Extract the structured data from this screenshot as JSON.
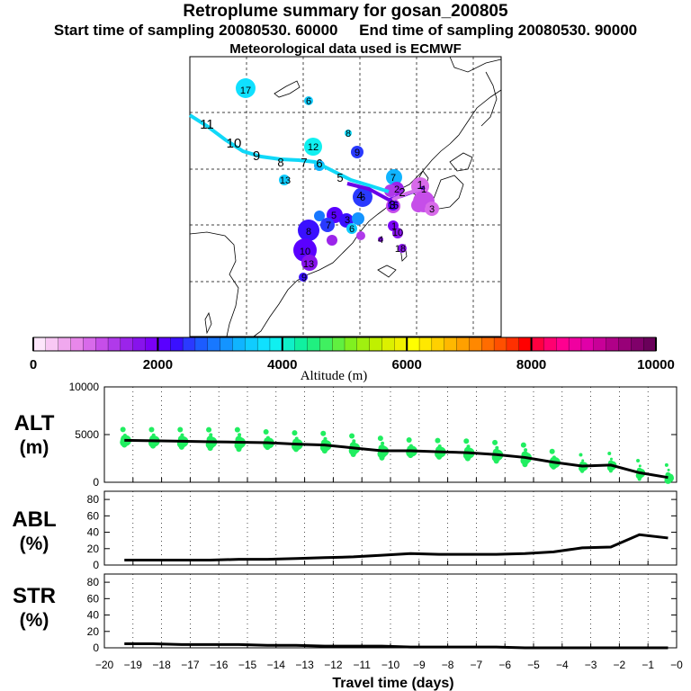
{
  "header": {
    "title": "Retroplume summary for gosan_200805",
    "start_label": "Start time of sampling 20080530. 60000",
    "end_label": "End time of sampling 20080530. 90000",
    "met_label": "Meteorological data used is ECMWF"
  },
  "map": {
    "track_labels": [
      "11",
      "10",
      "9",
      "8",
      "7",
      "6",
      "5",
      "4",
      "3",
      "2",
      "1"
    ],
    "cluster_labels": [
      "17",
      "6",
      "8",
      "12",
      "9",
      "13",
      "7",
      "6",
      "5",
      "3",
      "2",
      "1",
      "8",
      "7",
      "6",
      "1",
      "10",
      "13",
      "15",
      "10",
      "9",
      "18",
      "4",
      "3"
    ]
  },
  "colorbar": {
    "label": "Altitude (m)",
    "ticks": [
      "0",
      "2000",
      "4000",
      "6000",
      "8000",
      "10000"
    ],
    "colors": [
      "#fde6fb",
      "#f8c8f4",
      "#f0a8ee",
      "#e887ea",
      "#d86aea",
      "#c64ee9",
      "#b03aea",
      "#9b24ea",
      "#8713ec",
      "#7a00f6",
      "#5a00ff",
      "#3a10ff",
      "#2a3aff",
      "#1c5cff",
      "#1878ff",
      "#1494ff",
      "#10b4ff",
      "#10ccff",
      "#10e0ff",
      "#10f0f0",
      "#10f0c8",
      "#10f0a0",
      "#20f080",
      "#40f060",
      "#60f040",
      "#80f020",
      "#a0f010",
      "#c0f000",
      "#dcf000",
      "#f0f000",
      "#ffff00",
      "#ffe800",
      "#ffd000",
      "#ffb800",
      "#ffa000",
      "#ff8800",
      "#ff6c00",
      "#ff5000",
      "#ff3000",
      "#ff0000",
      "#ff0040",
      "#ff0070",
      "#ff0090",
      "#f000a0",
      "#e000a8",
      "#c80098",
      "#b00088",
      "#980078",
      "#80006a",
      "#6a005a"
    ]
  },
  "chart_data": [
    {
      "panel": "ALT",
      "type": "line",
      "ylabel": "ALT\n(m)",
      "ylabel_lines": [
        "ALT",
        "(m)"
      ],
      "x": [
        -19.3,
        -18.3,
        -17.3,
        -16.3,
        -15.3,
        -14.3,
        -13.3,
        -12.3,
        -11.3,
        -10.3,
        -9.3,
        -8.3,
        -7.3,
        -6.3,
        -5.3,
        -4.3,
        -3.3,
        -2.3,
        -1.3,
        -0.3
      ],
      "values": [
        4400,
        4350,
        4300,
        4250,
        4200,
        4150,
        4000,
        3900,
        3600,
        3300,
        3300,
        3200,
        3100,
        2900,
        2600,
        2100,
        1700,
        1800,
        1000,
        500
      ],
      "ylim": [
        0,
        10000
      ],
      "yticks": [
        "0",
        "5000",
        "10000"
      ],
      "scatter_color": "#20ee60"
    },
    {
      "panel": "ABL",
      "type": "line",
      "ylabel_lines": [
        "ABL",
        "(%)"
      ],
      "x": [
        -19.3,
        -18.3,
        -17.3,
        -16.3,
        -15.3,
        -14.3,
        -13.3,
        -12.3,
        -11.3,
        -10.3,
        -9.3,
        -8.3,
        -7.3,
        -6.3,
        -5.3,
        -4.3,
        -3.3,
        -2.3,
        -1.3,
        -0.3
      ],
      "values": [
        6,
        6,
        6,
        6,
        7,
        7,
        8,
        9,
        10,
        12,
        14,
        13,
        13,
        13,
        14,
        16,
        21,
        22,
        37,
        33
      ],
      "ylim": [
        0,
        90
      ],
      "yticks": [
        "0",
        "20",
        "40",
        "60",
        "80"
      ]
    },
    {
      "panel": "STR",
      "type": "line",
      "ylabel_lines": [
        "STR",
        "(%)"
      ],
      "x": [
        -19.3,
        -18.3,
        -17.3,
        -16.3,
        -15.3,
        -14.3,
        -13.3,
        -12.3,
        -11.3,
        -10.3,
        -9.3,
        -8.3,
        -7.3,
        -6.3,
        -5.3,
        -4.3,
        -3.3,
        -2.3,
        -1.3,
        -0.3
      ],
      "values": [
        5,
        5,
        4,
        4,
        4,
        3,
        3,
        2,
        2,
        2,
        1,
        1,
        1,
        1,
        0,
        0,
        0,
        0,
        0,
        0
      ],
      "ylim": [
        0,
        90
      ],
      "yticks": [
        "0",
        "20",
        "40",
        "60",
        "80"
      ]
    }
  ],
  "xaxis": {
    "title": "Travel time (days)",
    "xlim": [
      -20,
      0
    ],
    "ticks": [
      "−20",
      "−19",
      "−18",
      "−17",
      "−16",
      "−15",
      "−14",
      "−13",
      "−12",
      "−11",
      "−10",
      "−9",
      "−8",
      "−7",
      "−6",
      "−5",
      "−4",
      "−3",
      "−2",
      "−1",
      "−0"
    ]
  }
}
